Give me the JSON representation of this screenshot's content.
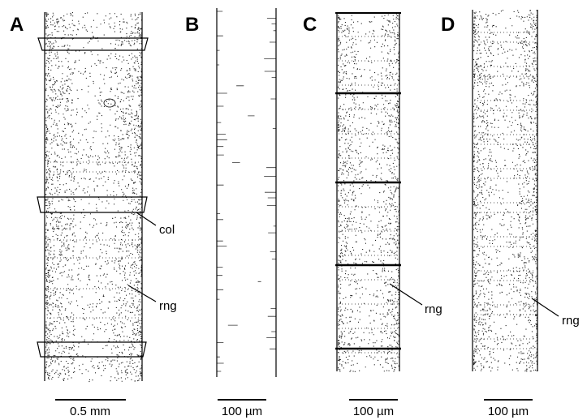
{
  "panels": [
    {
      "label": "A",
      "scale_bar": "0.5 mm",
      "annotations": [
        "col",
        "rng"
      ]
    },
    {
      "label": "B",
      "scale_bar": "100 µm"
    },
    {
      "label": "C",
      "scale_bar": "100 µm",
      "annotations": [
        "rng"
      ]
    },
    {
      "label": "D",
      "scale_bar": "100 µm",
      "annotations": [
        "rng"
      ]
    }
  ]
}
